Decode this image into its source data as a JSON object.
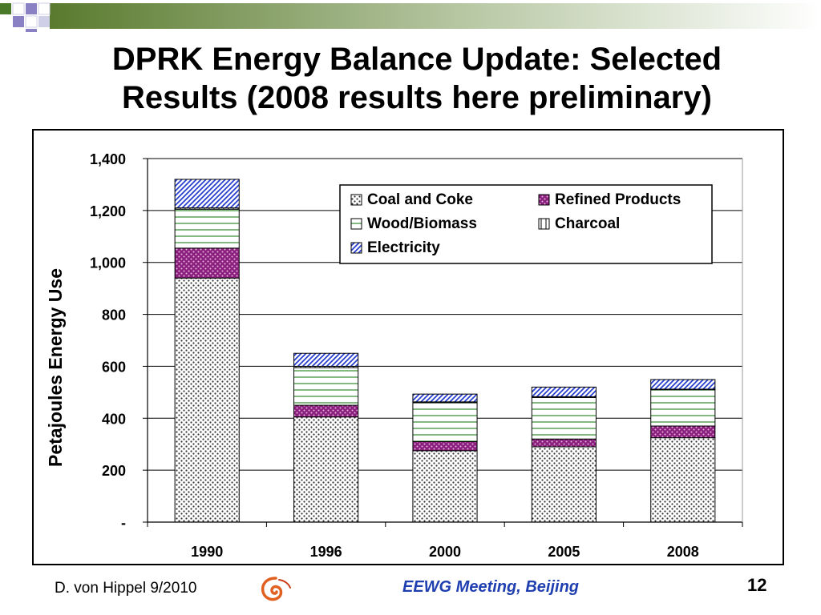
{
  "slide": {
    "title_line1": "DPRK Energy Balance Update: Selected",
    "title_line2": "Results (2008 results here preliminary)",
    "footer_author": "D. von Hippel  9/2010",
    "footer_event": "EEWG Meeting, Beijing",
    "page_number": "12",
    "colors": {
      "band_dark": "#5a7a2e",
      "band_light": "#ffffff",
      "squares_purple": "#8a80c4",
      "squares_green": "#4a7a28",
      "event_text": "#1f3fb0"
    }
  },
  "chart_data": {
    "type": "bar",
    "stacked": true,
    "categories": [
      "1990",
      "1996",
      "2000",
      "2005",
      "2008"
    ],
    "series": [
      {
        "name": "Coal and Coke",
        "values": [
          940,
          405,
          275,
          290,
          325
        ],
        "pattern": "dots"
      },
      {
        "name": "Refined Products",
        "values": [
          115,
          45,
          35,
          30,
          45
        ],
        "pattern": "purple-dots"
      },
      {
        "name": "Wood/Biomass",
        "values": [
          150,
          145,
          150,
          160,
          140
        ],
        "pattern": "green-lines"
      },
      {
        "name": "Charcoal",
        "values": [
          5,
          5,
          3,
          3,
          2
        ],
        "pattern": "vertical"
      },
      {
        "name": "Electricity",
        "values": [
          110,
          50,
          30,
          37,
          37
        ],
        "pattern": "blue-hatch"
      }
    ],
    "ylabel": "Petajoules Energy Use",
    "xlabel": "",
    "ylim": [
      0,
      1400
    ],
    "yticks": [
      0,
      200,
      400,
      600,
      800,
      1000,
      1200,
      1400
    ],
    "yticklabels": [
      "-",
      "200",
      "400",
      "600",
      "800",
      "1,000",
      "1,200",
      "1,400"
    ],
    "grid": true,
    "legend_position": "top-right"
  }
}
